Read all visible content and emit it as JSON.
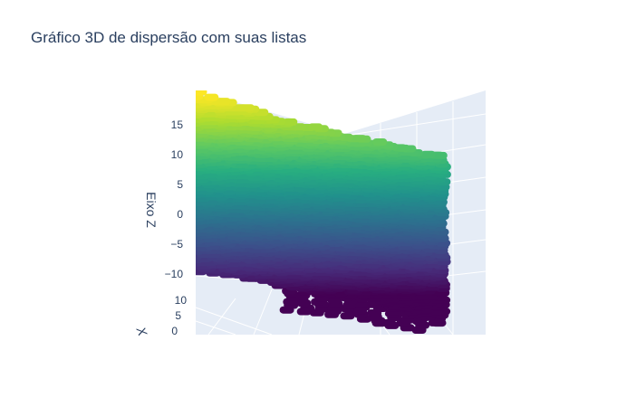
{
  "chart_data": {
    "type": "scatter3d",
    "title": "Gráfico 3D de dispersão com suas listas",
    "colorscale": "Viridis",
    "colors": [
      "#440154",
      "#472d7b",
      "#3b528b",
      "#2c728e",
      "#21918c",
      "#28ae80",
      "#5ec962",
      "#addc30",
      "#fde725"
    ],
    "zlabel": "Eixo Z",
    "xlabel": "X",
    "zlim": [
      -13,
      20
    ],
    "z_ticks": [
      "15",
      "10",
      "5",
      "0",
      "−5",
      "−10"
    ],
    "x_ticks": [
      "10",
      "5",
      "0"
    ],
    "legend": "none"
  }
}
